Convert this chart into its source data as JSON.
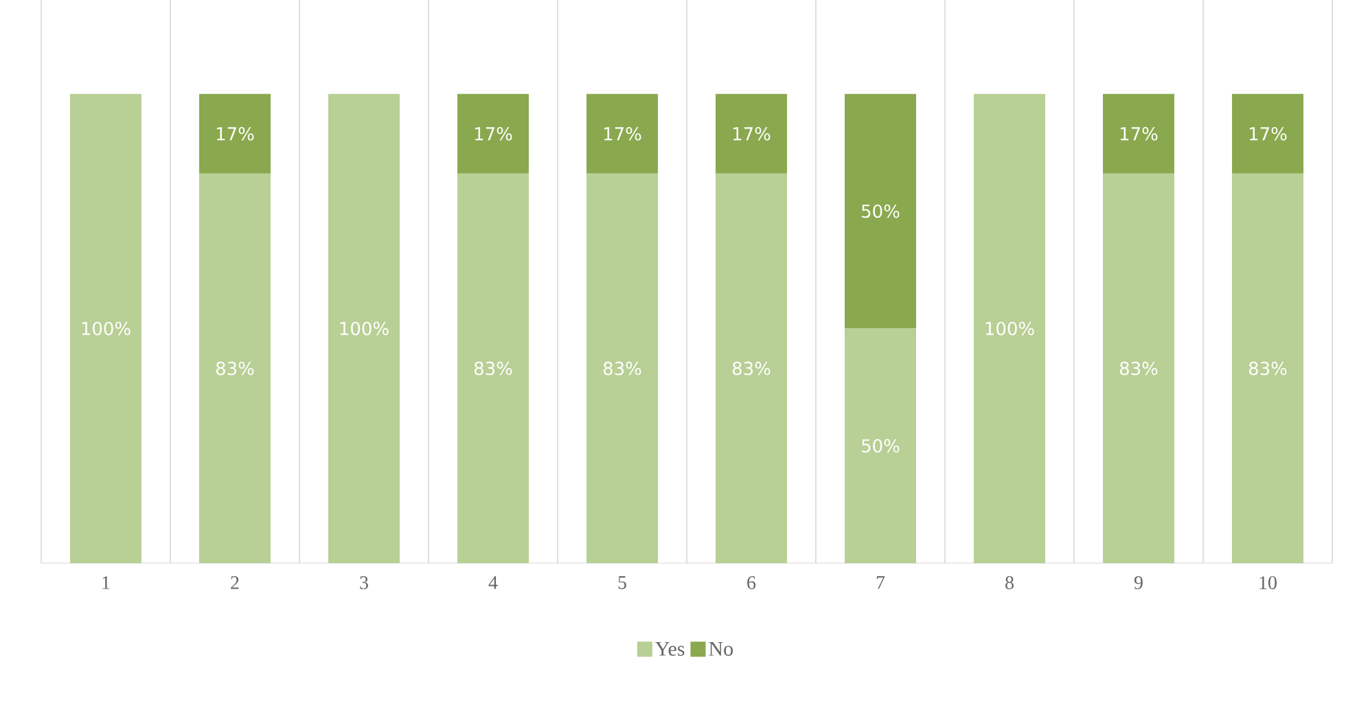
{
  "chart_data": {
    "type": "bar",
    "stacked": true,
    "categories": [
      "1",
      "2",
      "3",
      "4",
      "5",
      "6",
      "7",
      "8",
      "9",
      "10"
    ],
    "series": [
      {
        "name": "Yes",
        "color": "#b8cf95",
        "values": [
          100,
          83,
          100,
          83,
          83,
          83,
          50,
          100,
          83,
          83
        ],
        "value_labels": [
          "100%",
          "83%",
          "100%",
          "83%",
          "83%",
          "83%",
          "50%",
          "100%",
          "83%",
          "83%"
        ]
      },
      {
        "name": "No",
        "color": "#8aa84e",
        "values": [
          null,
          17,
          null,
          17,
          17,
          17,
          50,
          null,
          17,
          17
        ],
        "value_labels": [
          null,
          "17%",
          null,
          "17%",
          "17%",
          "17%",
          "50%",
          null,
          "17%",
          "17%"
        ]
      }
    ],
    "ylim": [
      0,
      100
    ],
    "grid": "x",
    "legend": "bottom",
    "tick_labels": "x"
  }
}
